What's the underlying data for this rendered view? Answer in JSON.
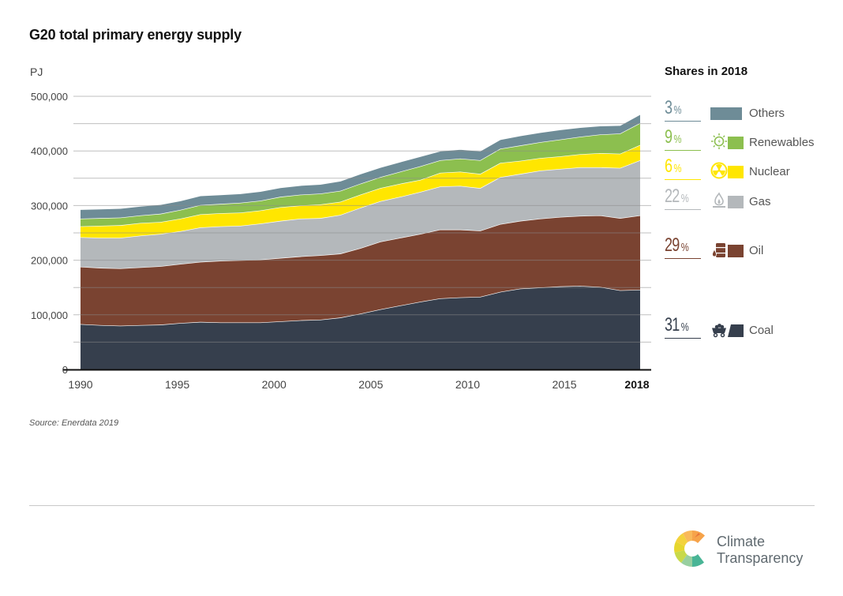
{
  "header": {
    "title": "G20 total primary energy supply",
    "unit": "PJ"
  },
  "legend": {
    "title": "Shares in 2018",
    "items": [
      {
        "pct": "3",
        "label": "Others",
        "color": "#6e8c97",
        "icon": "none"
      },
      {
        "pct": "9",
        "label": "Renewables",
        "color": "#8cbf4f",
        "icon": "sun-bolt-icon"
      },
      {
        "pct": "6",
        "label": "Nuclear",
        "color": "#ffe600",
        "icon": "radiation-icon"
      },
      {
        "pct": "22",
        "label": "Gas",
        "color": "#b4b8bb",
        "icon": "gas-flame-icon"
      },
      {
        "pct": "29",
        "label": "Oil",
        "color": "#7a4331",
        "icon": "oil-barrel-icon"
      },
      {
        "pct": "31",
        "label": "Coal",
        "color": "#363f4d",
        "icon": "coal-cart-icon"
      }
    ],
    "percent_sign": "%"
  },
  "footer": {
    "source": "Source: Enerdata 2019",
    "logo_line1": "Climate",
    "logo_line2": "Transparency"
  },
  "chart_data": {
    "type": "area",
    "stacked": true,
    "title": "G20 total primary energy supply",
    "xlabel": "",
    "ylabel": "PJ",
    "ylim": [
      0,
      500000
    ],
    "yticks": [
      0,
      100000,
      200000,
      300000,
      400000,
      500000
    ],
    "ytick_labels": [
      "0",
      "100,000",
      "200,000",
      "300,000",
      "400,000",
      "500,000"
    ],
    "minor_gridlines": [
      50000,
      150000,
      250000,
      350000,
      450000
    ],
    "grid": true,
    "xticks": [
      1990,
      1995,
      2000,
      2005,
      2010,
      2015,
      2018
    ],
    "xtick_labels": [
      "1990",
      "1995",
      "2000",
      "2005",
      "2010",
      "2015",
      "2018"
    ],
    "legend_position": "right",
    "x": [
      1990,
      1991,
      1992,
      1993,
      1994,
      1995,
      1996,
      1997,
      1998,
      1999,
      2000,
      2001,
      2002,
      2003,
      2004,
      2005,
      2006,
      2007,
      2008,
      2009,
      2010,
      2011,
      2012,
      2013,
      2014,
      2015,
      2016,
      2017,
      2018
    ],
    "series": [
      {
        "name": "Coal",
        "color": "#363f4d",
        "values": [
          83000,
          81000,
          80000,
          81000,
          82000,
          85000,
          87000,
          86000,
          86000,
          86000,
          88000,
          90000,
          91000,
          95000,
          102000,
          110000,
          117000,
          124000,
          130000,
          132000,
          133000,
          142000,
          148000,
          150000,
          152000,
          153000,
          151000,
          145000,
          146000
        ]
      },
      {
        "name": "Oil",
        "color": "#7a4331",
        "values": [
          105000,
          105000,
          105000,
          106000,
          107000,
          108000,
          110000,
          113000,
          114000,
          115000,
          116000,
          117000,
          118000,
          117000,
          120000,
          124000,
          124000,
          124000,
          126000,
          124000,
          121000,
          124000,
          124000,
          126000,
          127000,
          128000,
          131000,
          132000,
          136000
        ]
      },
      {
        "name": "Gas",
        "color": "#b4b8bb",
        "values": [
          54000,
          55000,
          56000,
          58000,
          59000,
          60000,
          63000,
          63000,
          63000,
          66000,
          68000,
          69000,
          68000,
          71000,
          74000,
          74000,
          75000,
          77000,
          79000,
          80000,
          78000,
          86000,
          86000,
          88000,
          88000,
          89000,
          88000,
          92000,
          101000
        ]
      },
      {
        "name": "Nuclear",
        "color": "#ffe600",
        "values": [
          20000,
          22000,
          23000,
          23000,
          22000,
          23000,
          24000,
          24000,
          24000,
          24000,
          25000,
          24000,
          25000,
          24000,
          24000,
          24000,
          24000,
          22000,
          25000,
          26000,
          26000,
          26000,
          24000,
          23000,
          23000,
          24000,
          26000,
          26000,
          28000
        ]
      },
      {
        "name": "Renewables",
        "color": "#8cbf4f",
        "values": [
          14000,
          14000,
          14000,
          14000,
          15000,
          16000,
          17000,
          17000,
          18000,
          18000,
          19000,
          20000,
          20000,
          20000,
          20000,
          20000,
          22000,
          25000,
          23000,
          24000,
          25000,
          26000,
          28000,
          29000,
          31000,
          32000,
          34000,
          37000,
          40000
        ]
      },
      {
        "name": "Others",
        "color": "#6e8c97",
        "values": [
          17000,
          17000,
          17000,
          17000,
          17000,
          17000,
          17000,
          17000,
          17000,
          17000,
          17000,
          17000,
          17000,
          18000,
          18000,
          18000,
          18000,
          18000,
          17000,
          17000,
          17000,
          17000,
          18000,
          18000,
          18000,
          17000,
          16000,
          15000,
          16000
        ]
      }
    ],
    "shares_2018_percent": {
      "Others": 3,
      "Renewables": 9,
      "Nuclear": 6,
      "Gas": 22,
      "Oil": 29,
      "Coal": 31
    },
    "source": "Source: Enerdata 2019"
  }
}
